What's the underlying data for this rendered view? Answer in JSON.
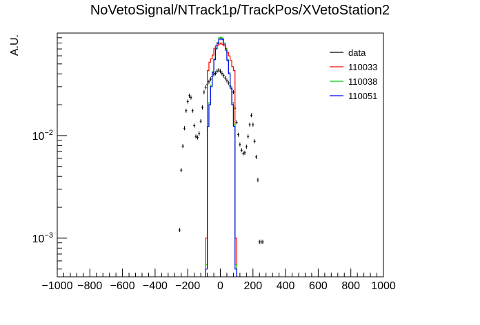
{
  "chart_data": {
    "type": "line",
    "title": "NoVetoSignal/NTrack1p/TrackPos/XVetoStation2",
    "xlabel": "",
    "ylabel": "A.U.",
    "xlim": [
      -1000,
      1000
    ],
    "ylim": [
      0.00042,
      0.1
    ],
    "yscale": "log",
    "x_ticks": [
      -1000,
      -800,
      -600,
      -400,
      -200,
      0,
      200,
      400,
      600,
      800,
      1000
    ],
    "x_tick_labels": [
      "−1000",
      "−800",
      "−600",
      "−400",
      "−200",
      "0",
      "200",
      "400",
      "600",
      "800",
      "1000"
    ],
    "y_tick_labels": [
      {
        "value": 0.01,
        "base": "10",
        "exp": "−2"
      },
      {
        "value": 0.001,
        "base": "10",
        "exp": "−3"
      }
    ],
    "legend_position": "top-right",
    "series": [
      {
        "name": "data",
        "style": "points",
        "color": "#000000",
        "x": [
          -250,
          -240,
          -230,
          -220,
          -210,
          -200,
          -190,
          -180,
          -170,
          -160,
          -150,
          -140,
          -130,
          -120,
          -110,
          -100,
          -90,
          -80,
          -70,
          -60,
          -50,
          -40,
          -30,
          -20,
          -10,
          0,
          10,
          20,
          30,
          40,
          50,
          60,
          70,
          80,
          90,
          100,
          110,
          120,
          130,
          140,
          150,
          160,
          170,
          180,
          190,
          200,
          210,
          220,
          230,
          240,
          250,
          260
        ],
        "y": [
          0.0012,
          0.0046,
          0.0079,
          0.0118,
          0.0175,
          0.0215,
          0.0245,
          0.0235,
          0.0175,
          0.0125,
          0.0098,
          0.0096,
          0.0105,
          0.0138,
          0.0188,
          0.0265,
          0.0295,
          0.0315,
          0.0335,
          0.0355,
          0.0375,
          0.0395,
          0.0405,
          0.0425,
          0.0435,
          0.0425,
          0.0405,
          0.0385,
          0.0365,
          0.0345,
          0.0325,
          0.0305,
          0.0285,
          0.0265,
          0.0185,
          0.0135,
          0.0102,
          0.0082,
          0.0072,
          0.0067,
          0.0068,
          0.0078,
          0.0098,
          0.0128,
          0.0158,
          0.0128,
          0.0088,
          0.0062,
          0.0037,
          0.00092,
          0.00092,
          0.00092
        ]
      },
      {
        "name": "110033",
        "style": "step",
        "color": "#ff0000",
        "edges": [
          -90,
          -80,
          -70,
          -60,
          -50,
          -40,
          -30,
          -20,
          -10,
          0,
          10,
          20,
          30,
          40,
          50,
          60,
          70,
          80,
          90,
          100
        ],
        "y": [
          0.001,
          0.043,
          0.052,
          0.056,
          0.061,
          0.071,
          0.075,
          0.076,
          0.078,
          0.08,
          0.077,
          0.075,
          0.071,
          0.065,
          0.06,
          0.054,
          0.047,
          0.043,
          0.001
        ]
      },
      {
        "name": "110038",
        "style": "step",
        "color": "#00cc00",
        "edges": [
          -90,
          -80,
          -70,
          -60,
          -50,
          -40,
          -30,
          -20,
          -10,
          0,
          10,
          20,
          30,
          40,
          50,
          60,
          70,
          80,
          90,
          100
        ],
        "y": [
          0.00055,
          0.0128,
          0.021,
          0.031,
          0.042,
          0.056,
          0.071,
          0.081,
          0.09,
          0.091,
          0.089,
          0.08,
          0.07,
          0.055,
          0.041,
          0.03,
          0.021,
          0.0128,
          0.00055
        ]
      },
      {
        "name": "110051",
        "style": "step",
        "color": "#0000ff",
        "edges": [
          -90,
          -80,
          -70,
          -60,
          -50,
          -40,
          -30,
          -20,
          -10,
          0,
          10,
          20,
          30,
          40,
          50,
          60,
          70,
          80,
          90,
          100
        ],
        "y": [
          0.0005,
          0.0123,
          0.02,
          0.03,
          0.041,
          0.055,
          0.07,
          0.079,
          0.087,
          0.088,
          0.086,
          0.078,
          0.068,
          0.054,
          0.04,
          0.029,
          0.02,
          0.0123,
          0.0005
        ]
      }
    ]
  }
}
